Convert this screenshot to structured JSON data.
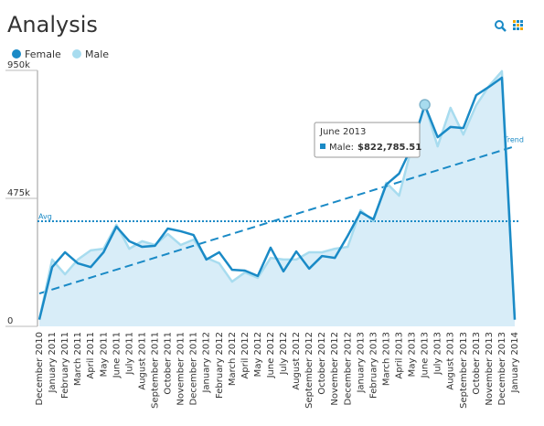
{
  "chart_data": {
    "type": "line",
    "title": "Analysis",
    "categories": [
      "December 2010",
      "January 2011",
      "February 2011",
      "March 2011",
      "April 2011",
      "May 2011",
      "June 2011",
      "July 2011",
      "August 2011",
      "September 2011",
      "October 2011",
      "November 2011",
      "December 2011",
      "January 2012",
      "February 2012",
      "March 2012",
      "April 2012",
      "May 2012",
      "June 2012",
      "July 2012",
      "August 2012",
      "September 2012",
      "October 2012",
      "November 2012",
      "December 2012",
      "January 2013",
      "February 2013",
      "March 2013",
      "April 2013",
      "May 2013",
      "June 2013",
      "July 2013",
      "August 2013",
      "September 2013",
      "October 2013",
      "November 2013",
      "December 2013",
      "January 2014"
    ],
    "series": [
      {
        "name": "Female",
        "color": "#1a8ac6",
        "values": [
          25000,
          220000,
          275000,
          234000,
          220000,
          275000,
          370000,
          316000,
          295000,
          299000,
          363000,
          353000,
          339000,
          248000,
          275000,
          210000,
          207000,
          187000,
          292000,
          204000,
          278000,
          214000,
          261000,
          254000,
          336000,
          424000,
          397000,
          526000,
          567000,
          668000,
          821000,
          702000,
          740000,
          736000,
          858000,
          889000,
          923000,
          25000
        ]
      },
      {
        "name": "Male",
        "color": "#a8dcef",
        "values": [
          25000,
          248000,
          193000,
          248000,
          282000,
          288000,
          377000,
          288000,
          316000,
          302000,
          343000,
          302000,
          322000,
          254000,
          234000,
          166000,
          200000,
          180000,
          254000,
          248000,
          248000,
          275000,
          275000,
          288000,
          295000,
          431000,
          390000,
          533000,
          485000,
          668000,
          822785.51,
          668000,
          811000,
          712000,
          821000,
          892000,
          947000,
          25000
        ]
      }
    ],
    "ylim": [
      0,
      950000
    ],
    "yticks": [
      0,
      {
        "value": 475000,
        "label": "475k"
      },
      {
        "value": 950000,
        "label": "950k"
      }
    ],
    "average": 390000,
    "average_label": "Avg",
    "trend": [
      122000,
      668000
    ],
    "trend_label": "Trend",
    "area_color": "#d8edf8",
    "tooltip": {
      "title": "June 2013",
      "series_label": "Male:",
      "value": 822785.51,
      "value_label": "$822,785.51"
    }
  }
}
